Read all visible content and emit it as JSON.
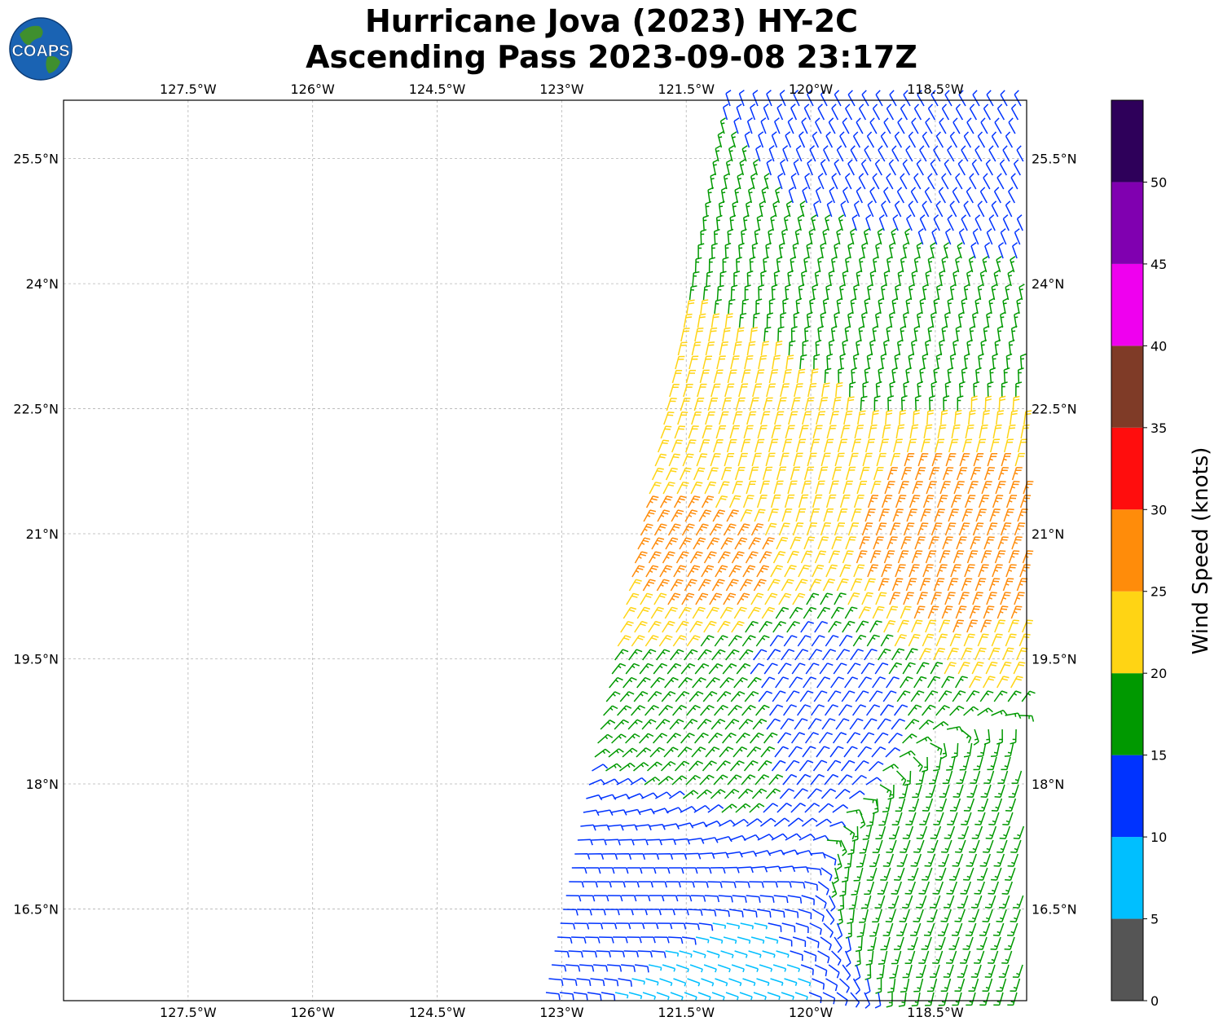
{
  "title_line1": "Hurricane Jova (2023) HY-2C",
  "title_line2": "Ascending Pass 2023-09-08 23:17Z",
  "logo_text": "COAPS",
  "chart_data": {
    "type": "wind_barbs",
    "x_ticks": [
      "127.5°W",
      "126°W",
      "124.5°W",
      "123°W",
      "121.5°W",
      "120°W",
      "118.5°W"
    ],
    "x_tick_values": [
      -127.5,
      -126,
      -124.5,
      -123,
      -121.5,
      -120,
      -118.5
    ],
    "y_ticks": [
      "16.5°N",
      "18°N",
      "19.5°N",
      "21°N",
      "22.5°N",
      "24°N",
      "25.5°N"
    ],
    "y_tick_values": [
      16.5,
      18,
      19.5,
      21,
      22.5,
      24,
      25.5
    ],
    "xlim": [
      -129,
      -117.4
    ],
    "ylim": [
      15.4,
      26.2
    ],
    "grid": true,
    "colorbar": {
      "label": "Wind Speed (knots)",
      "bounds": [
        0,
        5,
        10,
        15,
        20,
        25,
        30,
        35,
        40,
        45,
        50,
        55
      ],
      "tick_labels": [
        "0",
        "5",
        "10",
        "15",
        "20",
        "25",
        "30",
        "35",
        "40",
        "45",
        "50"
      ],
      "colors": [
        "#555555",
        "#00bfff",
        "#0033ff",
        "#009900",
        "#ffd414",
        "#ff8c0a",
        "#ff0d0d",
        "#7f3b27",
        "#ef00ef",
        "#8000b0",
        "#2e005a"
      ]
    },
    "swath_corners": {
      "top_left": [
        -121.0,
        26.0
      ],
      "bottom_left": [
        -123.2,
        15.45
      ]
    },
    "samples": [
      {
        "lon": -118.5,
        "lat": 25.5,
        "speed": 12,
        "dir_from": 330
      },
      {
        "lon": -119.0,
        "lat": 23.5,
        "speed": 17,
        "dir_from": 350
      },
      {
        "lon": -120.3,
        "lat": 21.8,
        "speed": 22,
        "dir_from": 15
      },
      {
        "lon": -121.2,
        "lat": 20.6,
        "speed": 26,
        "dir_from": 30
      },
      {
        "lon": -118.6,
        "lat": 20.9,
        "speed": 27,
        "dir_from": 20
      },
      {
        "lon": -121.0,
        "lat": 18.8,
        "speed": 17,
        "dir_from": 40
      },
      {
        "lon": -120.2,
        "lat": 19.0,
        "speed": 12,
        "dir_from": 35
      },
      {
        "lon": -122.0,
        "lat": 16.4,
        "speed": 12,
        "dir_from": 90
      },
      {
        "lon": -121.5,
        "lat": 15.6,
        "speed": 8,
        "dir_from": 110
      },
      {
        "lon": -118.3,
        "lat": 17.0,
        "speed": 17,
        "dir_from": 200
      }
    ]
  }
}
